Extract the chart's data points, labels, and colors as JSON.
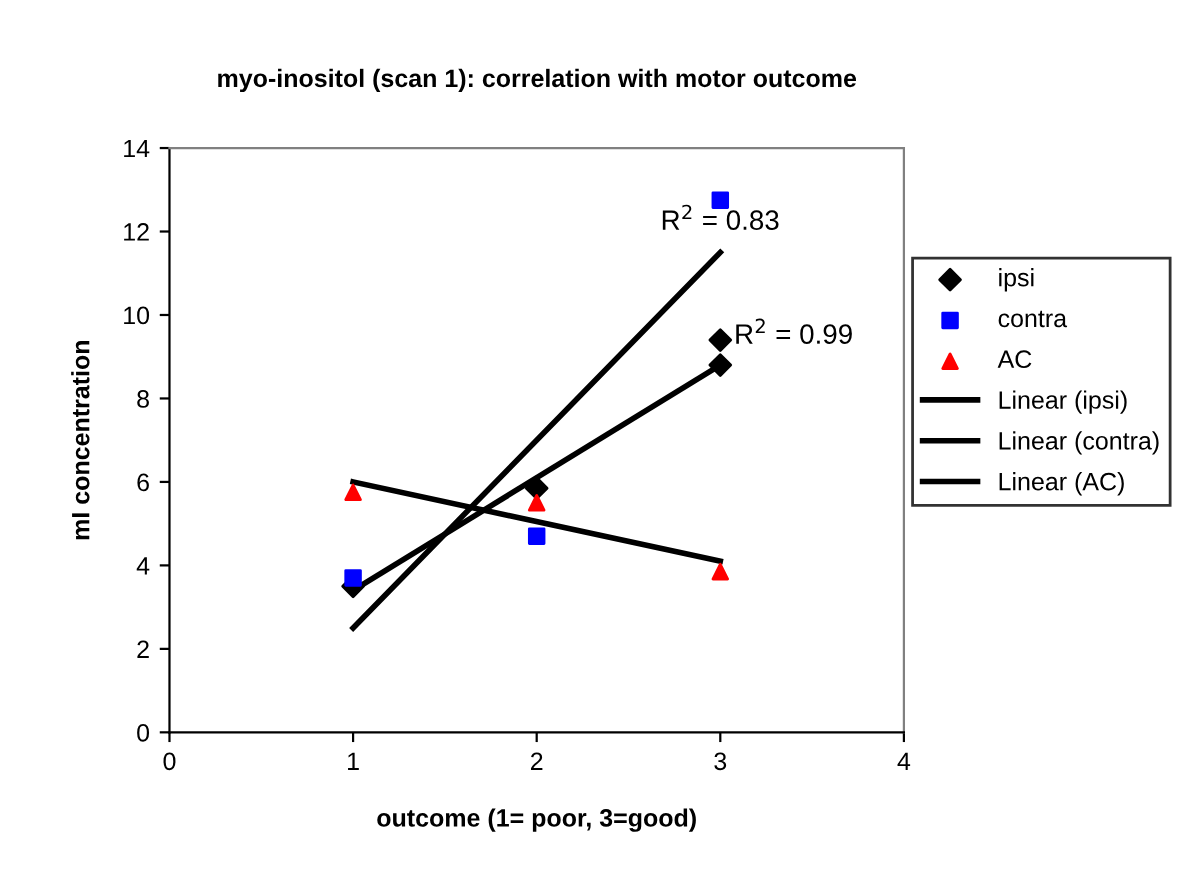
{
  "chart_data": {
    "type": "scatter",
    "title": "myo-inositol (scan 1): correlation with motor outcome",
    "xlabel": "outcome (1= poor, 3=good)",
    "ylabel": "mI concentration",
    "xlim": [
      0,
      4
    ],
    "xticks": [
      0,
      1,
      2,
      3,
      4
    ],
    "ylim": [
      0,
      14
    ],
    "yticks": [
      0,
      2,
      4,
      6,
      8,
      10,
      12,
      14
    ],
    "grid": false,
    "legend": "right",
    "series": [
      {
        "name": "ipsi",
        "color": "#000000",
        "marker": "diamond",
        "x": [
          1,
          2,
          3,
          3
        ],
        "values": [
          3.5,
          5.85,
          9.4,
          8.8
        ]
      },
      {
        "name": "contra",
        "color": "#0000ff",
        "marker": "square",
        "x": [
          1,
          2,
          3
        ],
        "values": [
          3.7,
          4.7,
          12.75
        ]
      },
      {
        "name": "AC",
        "color": "#ff0000",
        "marker": "triangle",
        "x": [
          1,
          2,
          3
        ],
        "values": [
          5.75,
          5.5,
          3.85
        ]
      },
      {
        "name": "Linear (ipsi)",
        "type": "line",
        "color": "#000000",
        "marker": "none",
        "x": [
          1,
          3
        ],
        "values": [
          3.4,
          8.8
        ]
      },
      {
        "name": "Linear (contra)",
        "type": "line",
        "color": "#000000",
        "marker": "none",
        "x": [
          1,
          3
        ],
        "values": [
          2.5,
          11.5
        ]
      },
      {
        "name": "Linear (AC)",
        "type": "line",
        "color": "#000000",
        "marker": "none",
        "x": [
          1,
          3
        ],
        "values": [
          6.0,
          4.1
        ]
      }
    ],
    "annotations": [
      "R$^{2}$ = 0.83",
      "R$^{2}$ = 0.99"
    ]
  }
}
